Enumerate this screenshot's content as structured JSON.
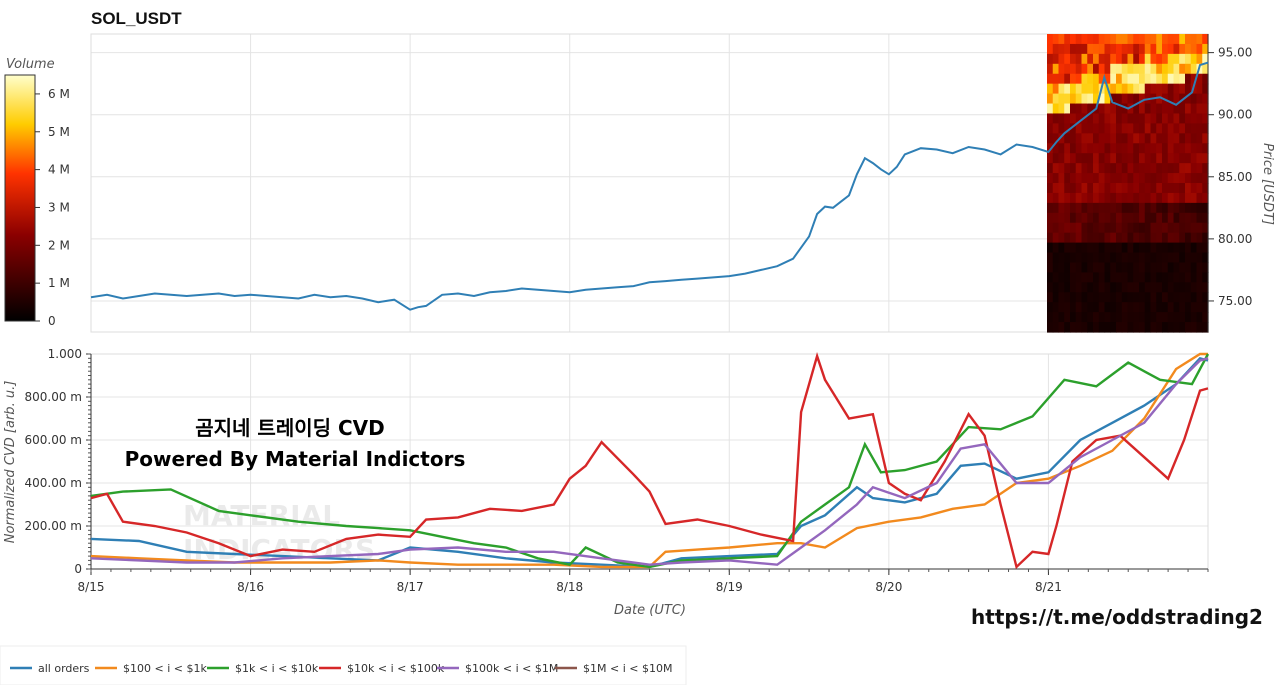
{
  "chart_data": [
    {
      "type": "line",
      "title": "SOL_USDT",
      "ylabel": "Price [USDT]",
      "yticks": [
        "75.00",
        "80.00",
        "85.00",
        "90.00",
        "95.00"
      ],
      "ylim": [
        72.5,
        96.5
      ],
      "xlim": [
        0,
        7
      ],
      "grid": true,
      "series": [
        {
          "name": "price",
          "color": "#2f7fb5",
          "x": [
            0,
            0.1,
            0.2,
            0.3,
            0.4,
            0.5,
            0.6,
            0.7,
            0.8,
            0.9,
            1.0,
            1.1,
            1.2,
            1.3,
            1.4,
            1.5,
            1.6,
            1.7,
            1.8,
            1.9,
            2.0,
            2.05,
            2.1,
            2.2,
            2.3,
            2.4,
            2.5,
            2.6,
            2.7,
            2.8,
            2.9,
            3.0,
            3.1,
            3.2,
            3.3,
            3.4,
            3.5,
            3.6,
            3.7,
            3.8,
            3.9,
            4.0,
            4.1,
            4.2,
            4.3,
            4.4,
            4.5,
            4.55,
            4.6,
            4.65,
            4.7,
            4.75,
            4.8,
            4.85,
            4.9,
            4.95,
            5.0,
            5.05,
            5.1,
            5.2,
            5.3,
            5.4,
            5.5,
            5.6,
            5.7,
            5.8,
            5.9,
            6.0,
            6.05,
            6.1,
            6.2,
            6.3,
            6.35,
            6.4,
            6.5,
            6.6,
            6.7,
            6.8,
            6.85,
            6.9,
            6.95,
            7.0
          ],
          "y": [
            75.3,
            75.5,
            75.2,
            75.4,
            75.6,
            75.5,
            75.4,
            75.5,
            75.6,
            75.4,
            75.5,
            75.4,
            75.3,
            75.2,
            75.5,
            75.3,
            75.4,
            75.2,
            74.9,
            75.1,
            74.3,
            74.5,
            74.6,
            75.5,
            75.6,
            75.4,
            75.7,
            75.8,
            76.0,
            75.9,
            75.8,
            75.7,
            75.9,
            76.0,
            76.1,
            76.2,
            76.5,
            76.6,
            76.7,
            76.8,
            76.9,
            77.0,
            77.2,
            77.5,
            77.8,
            78.4,
            80.2,
            82.0,
            82.6,
            82.5,
            83.0,
            83.5,
            85.2,
            86.5,
            86.1,
            85.6,
            85.2,
            85.8,
            86.8,
            87.3,
            87.2,
            86.9,
            87.4,
            87.2,
            86.8,
            87.6,
            87.4,
            87.0,
            87.8,
            88.5,
            89.5,
            90.5,
            93.0,
            91.0,
            90.5,
            91.2,
            91.4,
            90.8,
            91.3,
            91.8,
            94.0,
            94.2
          ]
        }
      ],
      "colorbar": {
        "title": "Volume",
        "ticks": [
          "0",
          "1 M",
          "2 M",
          "3 M",
          "4 M",
          "5 M",
          "6 M"
        ],
        "max": 6.5
      }
    },
    {
      "type": "line",
      "xlabel": "Date (UTC)",
      "ylabel": "Normalized CVD [arb. u.]",
      "categories": [
        "8/15",
        "8/16",
        "8/17",
        "8/18",
        "8/19",
        "8/20",
        "8/21"
      ],
      "yticks": [
        "0",
        "200.00 m",
        "400.00 m",
        "600.00 m",
        "800.00 m",
        "1.000"
      ],
      "ylim": [
        0,
        1.0
      ],
      "xlim": [
        0,
        7
      ],
      "series": [
        {
          "name": "all orders",
          "color": "#2f7fb5",
          "x": [
            0,
            0.3,
            0.6,
            0.9,
            1.2,
            1.5,
            1.8,
            2.0,
            2.3,
            2.6,
            2.9,
            3.2,
            3.5,
            3.7,
            4.0,
            4.3,
            4.45,
            4.6,
            4.8,
            4.9,
            5.1,
            5.3,
            5.45,
            5.6,
            5.8,
            6.0,
            6.2,
            6.4,
            6.6,
            6.8,
            6.95,
            7.0
          ],
          "y": [
            0.14,
            0.13,
            0.08,
            0.07,
            0.06,
            0.05,
            0.04,
            0.1,
            0.08,
            0.05,
            0.03,
            0.02,
            0.01,
            0.05,
            0.06,
            0.07,
            0.2,
            0.25,
            0.38,
            0.33,
            0.31,
            0.35,
            0.48,
            0.49,
            0.42,
            0.45,
            0.6,
            0.68,
            0.76,
            0.86,
            0.98,
            0.97
          ]
        },
        {
          "name": "$100 < i < $1k",
          "color": "#f28a1e",
          "x": [
            0,
            0.3,
            0.6,
            0.9,
            1.2,
            1.5,
            1.8,
            2.0,
            2.3,
            2.6,
            2.9,
            3.2,
            3.5,
            3.6,
            3.8,
            4.0,
            4.3,
            4.45,
            4.6,
            4.8,
            5.0,
            5.2,
            5.4,
            5.6,
            5.8,
            6.0,
            6.2,
            6.4,
            6.6,
            6.8,
            6.95,
            7.0
          ],
          "y": [
            0.06,
            0.05,
            0.04,
            0.03,
            0.03,
            0.03,
            0.04,
            0.03,
            0.02,
            0.02,
            0.02,
            0.01,
            0.01,
            0.08,
            0.09,
            0.1,
            0.12,
            0.12,
            0.1,
            0.19,
            0.22,
            0.24,
            0.28,
            0.3,
            0.4,
            0.42,
            0.48,
            0.55,
            0.7,
            0.93,
            1.0,
            1.0
          ]
        },
        {
          "name": "$1k < i < $10k",
          "color": "#2ca02c",
          "x": [
            0,
            0.2,
            0.5,
            0.8,
            1.0,
            1.3,
            1.6,
            1.8,
            2.0,
            2.2,
            2.4,
            2.6,
            2.8,
            3.0,
            3.1,
            3.3,
            3.5,
            3.7,
            4.0,
            4.3,
            4.45,
            4.6,
            4.75,
            4.85,
            4.95,
            5.1,
            5.3,
            5.5,
            5.7,
            5.9,
            6.1,
            6.3,
            6.5,
            6.7,
            6.9,
            7.0
          ],
          "y": [
            0.34,
            0.36,
            0.37,
            0.27,
            0.25,
            0.22,
            0.2,
            0.19,
            0.18,
            0.15,
            0.12,
            0.1,
            0.05,
            0.02,
            0.1,
            0.03,
            0.01,
            0.04,
            0.05,
            0.06,
            0.22,
            0.3,
            0.38,
            0.58,
            0.45,
            0.46,
            0.5,
            0.66,
            0.65,
            0.71,
            0.88,
            0.85,
            0.96,
            0.88,
            0.86,
            1.0
          ]
        },
        {
          "name": "$10k < i < $100k",
          "color": "#d62728",
          "x": [
            0,
            0.1,
            0.2,
            0.4,
            0.6,
            0.8,
            1.0,
            1.2,
            1.4,
            1.6,
            1.8,
            2.0,
            2.1,
            2.3,
            2.5,
            2.7,
            2.9,
            3.0,
            3.1,
            3.2,
            3.4,
            3.5,
            3.6,
            3.8,
            4.0,
            4.2,
            4.4,
            4.45,
            4.55,
            4.6,
            4.75,
            4.9,
            5.0,
            5.1,
            5.2,
            5.35,
            5.5,
            5.6,
            5.7,
            5.8,
            5.9,
            6.0,
            6.05,
            6.15,
            6.3,
            6.45,
            6.6,
            6.75,
            6.85,
            6.95,
            7.0
          ],
          "y": [
            0.33,
            0.35,
            0.22,
            0.2,
            0.17,
            0.12,
            0.06,
            0.09,
            0.08,
            0.14,
            0.16,
            0.15,
            0.23,
            0.24,
            0.28,
            0.27,
            0.3,
            0.42,
            0.48,
            0.59,
            0.44,
            0.36,
            0.21,
            0.23,
            0.2,
            0.16,
            0.13,
            0.73,
            0.99,
            0.88,
            0.7,
            0.72,
            0.4,
            0.35,
            0.32,
            0.5,
            0.72,
            0.62,
            0.3,
            0.01,
            0.08,
            0.07,
            0.2,
            0.5,
            0.6,
            0.62,
            0.52,
            0.42,
            0.6,
            0.83,
            0.84
          ]
        },
        {
          "name": "$100k < i < $1M",
          "color": "#9467bd",
          "x": [
            0,
            0.3,
            0.6,
            0.9,
            1.2,
            1.5,
            1.8,
            2.0,
            2.3,
            2.6,
            2.9,
            3.2,
            3.5,
            3.7,
            4.0,
            4.3,
            4.45,
            4.6,
            4.8,
            4.9,
            5.1,
            5.3,
            5.45,
            5.6,
            5.8,
            6.0,
            6.2,
            6.4,
            6.6,
            6.8,
            6.95,
            7.0
          ],
          "y": [
            0.05,
            0.04,
            0.03,
            0.03,
            0.05,
            0.06,
            0.07,
            0.09,
            0.1,
            0.08,
            0.08,
            0.05,
            0.02,
            0.03,
            0.04,
            0.02,
            0.1,
            0.18,
            0.3,
            0.38,
            0.33,
            0.4,
            0.56,
            0.58,
            0.4,
            0.4,
            0.52,
            0.6,
            0.68,
            0.86,
            0.97,
            0.98
          ]
        },
        {
          "name": "$1M < i < $10M",
          "color": "#8c564b",
          "x": [],
          "y": []
        }
      ]
    }
  ],
  "overlay": {
    "line1": "곰지네 트레이딩 CVD",
    "line2": "Powered By Material Indictors"
  },
  "watermark": {
    "line1": "MATERIAL",
    "line2": "INDICATORS"
  },
  "url": "https://t.me/oddstrading2",
  "legend": [
    {
      "label": "all orders",
      "color": "#2f7fb5"
    },
    {
      "label": "$100 < i < $1k",
      "color": "#f28a1e"
    },
    {
      "label": "$1k < i < $10k",
      "color": "#2ca02c"
    },
    {
      "label": "$10k < i < $100k",
      "color": "#d62728"
    },
    {
      "label": "$100k < i < $1M",
      "color": "#9467bd"
    },
    {
      "label": "$1M < i < $10M",
      "color": "#8c564b"
    }
  ]
}
